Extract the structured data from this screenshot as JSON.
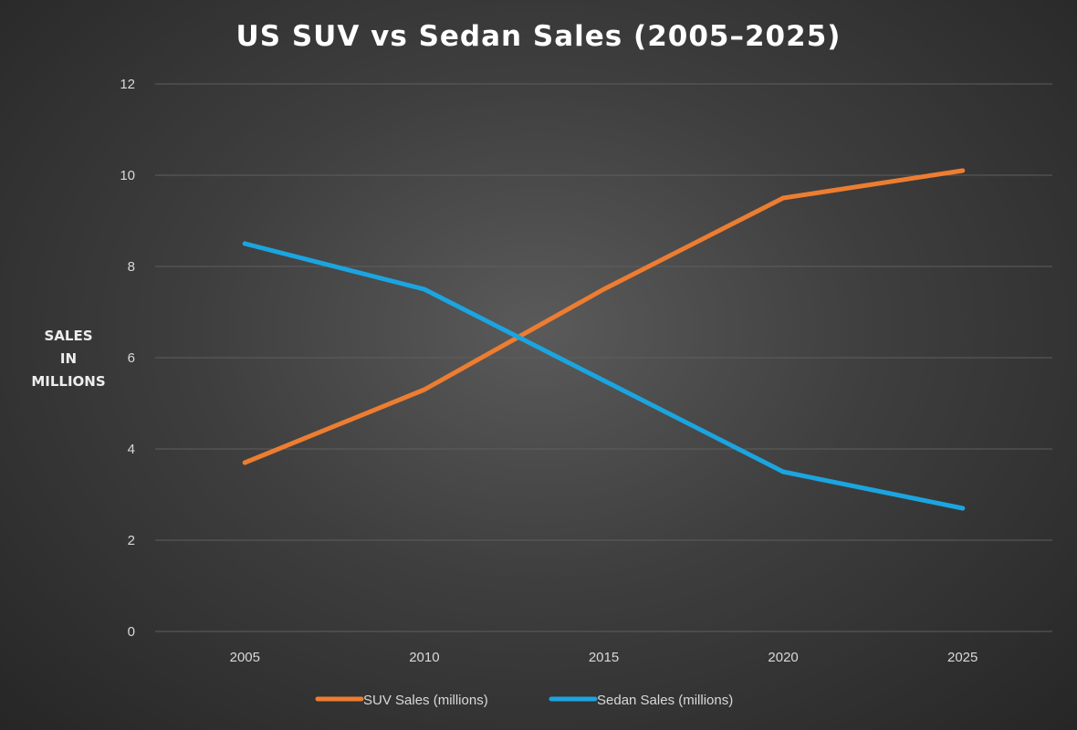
{
  "chart_data": {
    "type": "line",
    "title": "US SUV vs Sedan Sales (2005–2025)",
    "xlabel": "",
    "ylabel": "SALES IN MILLIONS",
    "ylabel_lines": [
      "SALES",
      "IN",
      "MILLIONS"
    ],
    "categories": [
      "2005",
      "2010",
      "2015",
      "2020",
      "2025"
    ],
    "ylim": [
      0,
      12
    ],
    "yticks": [
      0,
      2,
      4,
      6,
      8,
      10,
      12
    ],
    "grid": true,
    "legend_position": "bottom",
    "series": [
      {
        "name": "SUV Sales (millions)",
        "color": "#ED7D31",
        "values": [
          3.7,
          5.3,
          7.5,
          9.5,
          10.1
        ]
      },
      {
        "name": "Sedan Sales (millions)",
        "color": "#1BA5E0",
        "values": [
          8.5,
          7.5,
          5.5,
          3.5,
          2.7
        ]
      }
    ]
  }
}
